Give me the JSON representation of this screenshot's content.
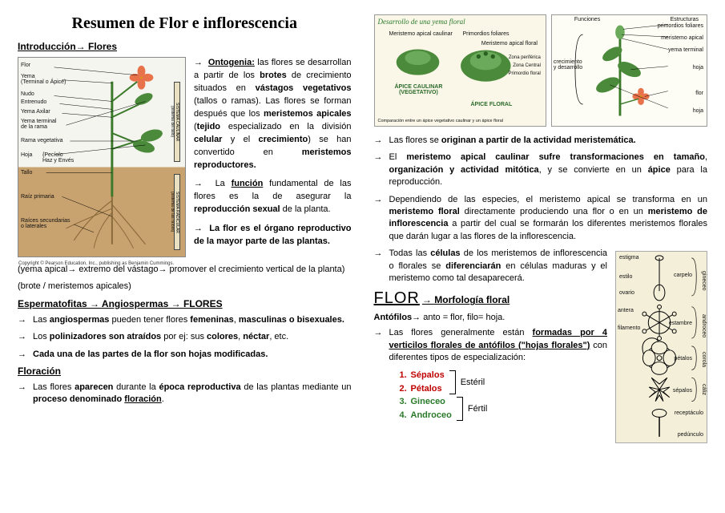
{
  "title": "Resumen de Flor e inflorescencia",
  "intro_heading": "Introducción→ Flores",
  "plant_labels": {
    "flor": "Flor",
    "yema": "Yema\n(Terminal o Ápice)",
    "nudo": "Nudo",
    "entrenudo": "Entrenudo",
    "yema_axilar": "Yema Axilar",
    "yema_terminal": "Yema terminal\nde la rama",
    "rama": "Rama vegetativa",
    "hoja": "Hoja",
    "peciolo": "Pecíolo",
    "haz_enves": "Haz y Envés",
    "tallo": "Tallo",
    "raiz_primaria": "Raíz primaria",
    "raices_sec": "Raíces secundarias\no laterales",
    "sistema_caulinar": "SISTEMA CAULINAR\n(sistema del tallo)",
    "sistema_radicular": "SISTEMA RADICULAR\n(sistema de las raíces)",
    "copyright": "Copyright © Pearson Education, Inc., publishing as Benjamin Cummings."
  },
  "intro_p1_pre": "Ontogenia:",
  "intro_p1": " las flores se desarrollan a partir de los <b>brotes</b> de crecimiento situados en <b>vástagos vegetativos</b> (tallos o ramas). Las flores se forman después que los <b>meristemos apicales</b> (<b>tejido</b> especializado en la división <b>celular</b> y el <b>crecimiento</b>) se han convertido en <b>meristemos reproductores.</b>",
  "intro_p2": "La <b><u>función</u></b> fundamental de las flores es la de asegurar la <b>reproducción sexual</b> de la planta.",
  "intro_p3": "<b>La flor es el órgano reproductivo de la mayor parte de las plantas.</b>",
  "note_yema": "(yema apical→ extremo del vástago→ promover el crecimiento vertical de la planta)",
  "note_brote": "(brote / meristemos apicales)",
  "esperm_heading": "Espermatofitas → Angiospermas → FLORES",
  "esperm_b1": "Las <b>angiospermas</b> pueden tener flores <b>femeninas</b>, <b>masculinas o bisexuales.</b>",
  "esperm_b2": " Los <b>polinizadores son atraídos</b> por ej: sus <b>colores</b>, <b>néctar</b>, etc.",
  "esperm_b3": "<b>Cada una de las partes de la flor son hojas modificadas.</b>",
  "floracion_heading": "Floración",
  "floracion_b1": "Las flores <b>aparecen</b> durante la <b>época reproductiva</b> de las plantas mediante un <b>proceso denominado <u>floración</u></b>.",
  "yema_panel_title": "Desarrollo de una yema floral",
  "yema_left_labels": {
    "meristemo_apical": "Meristemo apical caulinar",
    "primordios": "Primordios foliares",
    "meristemo_floral": "Meristemo apical floral",
    "zona_periferica": "Zona periférica",
    "zona_central": "Zona Central",
    "primordio_floral": "Primordio floral",
    "apice_caulinar": "ÁPICE CAULINAR\n(VEGETATIVO)",
    "apice_floral": "ÁPICE FLORAL",
    "footnote": "Comparación entre un ápice vegetativo caulinar y un ápice floral"
  },
  "yema_right_labels": {
    "funciones": "Funciones",
    "estructuras": "Estructuras",
    "crecimiento": "crecimiento\ny desarrollo",
    "primordios_fol": "primordios foliares",
    "meristemo_apical": "meristemo apical",
    "yema_terminal": "yema terminal",
    "hoja": "hoja",
    "flor": "flor",
    "hoja2": "hoja"
  },
  "right_b1": "Las flores se <b>originan a partir de la actividad meristemática.</b>",
  "right_b2": "El <b>meristemo apical caulinar sufre transformaciones en tamaño</b>, <b>organización y actividad mitótica</b>, y se convierte en un <b>ápice</b> para la reproducción.",
  "right_b3": "Dependiendo de las especies, el meristemo apical se transforma en un <b>meristemo floral</b> directamente produciendo una flor o en un <b>meristemo de inflorescencia</b> a partir del cual se formarán los diferentes meristemos florales que darán lugar a las flores de la inflorescencia.",
  "right_b4": "Todas las <b>células</b> de los meristemos de inflorescencia o florales se <b>diferenciarán</b> en células maduras y el meristemo como tal desaparecerá.",
  "flor_heading": "FLOR",
  "morfo_heading": "→ Morfología floral",
  "antofilos_def": "<b>Antófilos→</b> anto = flor, filo= hoja.",
  "antofilos_b1": "Las flores generalmente están <b><u>formadas por 4 verticilos florales de antófilos (\"hojas florales\")</u></b> con diferentes tipos de especialización:",
  "whorls": {
    "w1": "Sépalos",
    "w2": "Pétalos",
    "w3": "Gineceo",
    "w4": "Androceo",
    "esteril": "Estéril",
    "fertil": "Fértil"
  },
  "flower_part_labels": {
    "estigma": "estigma",
    "estilo": "estilo",
    "ovario": "ovario",
    "carpelo": "carpelo",
    "gineceo": "gineceo",
    "antera": "antera",
    "filamento": "filamento",
    "estambre": "estambre",
    "androceo": "androceo",
    "petalos": "pétalos",
    "corola": "corola",
    "sepalos": "sépalos",
    "caliz": "cáliz",
    "receptaculo": "receptáculo",
    "pedunculo": "pedúnculo"
  },
  "colors": {
    "flower": "#e8734a",
    "stem": "#3a7a2a",
    "leaf": "#4a8a3a",
    "root": "#8a6a3a",
    "soil": "#c9a36f",
    "red": "#c00000",
    "green": "#2a7a2a"
  }
}
